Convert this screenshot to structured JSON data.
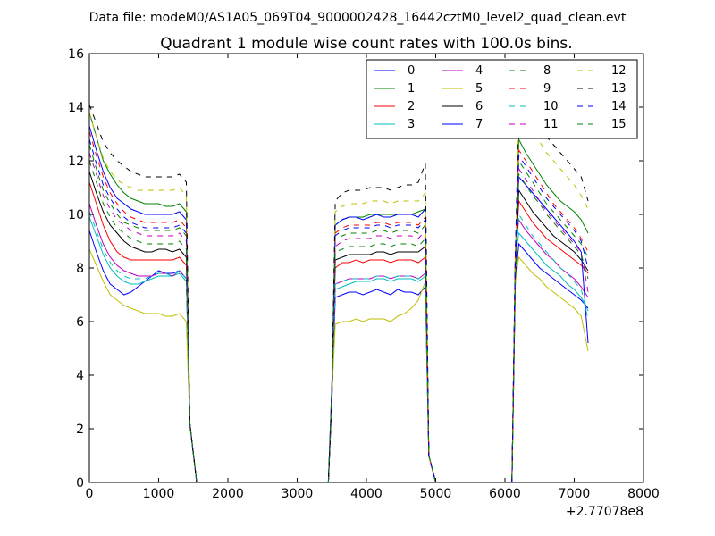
{
  "suptitle": "Data file: modeM0/AS1A05_069T04_9000002428_16442cztM0_level2_quad_clean.evt",
  "chart_data": {
    "type": "line",
    "title": "Quadrant 1 module wise count rates with 100.0s bins.",
    "xlabel": "",
    "ylabel": "",
    "xlim": [
      0,
      8000
    ],
    "ylim": [
      0,
      16
    ],
    "x_offset_label": "+2.77078e8",
    "xticks": [
      0,
      1000,
      2000,
      3000,
      4000,
      5000,
      6000,
      7000,
      8000
    ],
    "yticks": [
      0,
      2,
      4,
      6,
      8,
      10,
      12,
      14,
      16
    ],
    "grid": false,
    "legend": {
      "placement": "top-right",
      "columns": 4
    },
    "segments": [
      {
        "x_start": 0,
        "x_end": 1300,
        "plateau_end": 1400,
        "ramp_end": 1550
      },
      {
        "x_start": 3550,
        "x_end": 4850,
        "ramp_start": 3450,
        "drop_end": 5000
      },
      {
        "x_start": 6200,
        "x_end": 7200,
        "ramp_start": 6100
      }
    ],
    "series": [
      {
        "name": "0",
        "style": "solid",
        "color": "#0000ff",
        "seg1": [
          9.4,
          8.6,
          7.9,
          7.4,
          7.2,
          7.0,
          7.1,
          7.3,
          7.5,
          7.7,
          7.9,
          7.8,
          7.8,
          7.9
        ],
        "seg2": [
          6.9,
          7.0,
          7.1,
          7.1,
          7.0,
          7.1,
          7.2,
          7.1,
          7.0,
          7.2,
          7.1,
          7.1,
          7.0,
          7.3
        ],
        "seg3": [
          8.9,
          8.6,
          8.3,
          8.0,
          7.8,
          7.6,
          7.4,
          7.2,
          7.0,
          6.8,
          6.5
        ]
      },
      {
        "name": "1",
        "style": "solid",
        "color": "#008000",
        "seg1": [
          13.8,
          12.9,
          12.0,
          11.5,
          11.1,
          10.8,
          10.6,
          10.5,
          10.4,
          10.4,
          10.4,
          10.3,
          10.3,
          10.4
        ],
        "seg2": [
          9.6,
          9.8,
          9.9,
          9.9,
          9.9,
          10.0,
          10.0,
          10.0,
          10.0,
          10.0,
          10.0,
          10.0,
          10.1,
          10.2
        ],
        "seg3": [
          12.8,
          12.3,
          11.9,
          11.5,
          11.1,
          10.8,
          10.5,
          10.3,
          10.1,
          9.8,
          9.3
        ]
      },
      {
        "name": "2",
        "style": "solid",
        "color": "#ff0000",
        "seg1": [
          11.2,
          10.4,
          9.6,
          9.0,
          8.6,
          8.4,
          8.3,
          8.3,
          8.3,
          8.3,
          8.3,
          8.3,
          8.3,
          8.4
        ],
        "seg2": [
          8.0,
          8.2,
          8.2,
          8.3,
          8.2,
          8.3,
          8.3,
          8.3,
          8.2,
          8.3,
          8.3,
          8.3,
          8.2,
          8.4
        ],
        "seg3": [
          10.5,
          10.1,
          9.7,
          9.4,
          9.1,
          8.9,
          8.7,
          8.5,
          8.3,
          8.1,
          7.8
        ]
      },
      {
        "name": "3",
        "style": "solid",
        "color": "#00bfbf",
        "seg1": [
          9.9,
          9.2,
          8.5,
          8.0,
          7.7,
          7.5,
          7.4,
          7.4,
          7.5,
          7.6,
          7.7,
          7.7,
          7.7,
          7.8
        ],
        "seg2": [
          7.2,
          7.3,
          7.4,
          7.5,
          7.5,
          7.5,
          7.6,
          7.6,
          7.5,
          7.6,
          7.6,
          7.6,
          7.5,
          7.7
        ],
        "seg3": [
          9.3,
          9.0,
          8.7,
          8.4,
          8.1,
          7.9,
          7.7,
          7.4,
          7.2,
          6.9,
          6.4
        ]
      },
      {
        "name": "4",
        "style": "solid",
        "color": "#bf00bf",
        "seg1": [
          10.4,
          9.6,
          8.9,
          8.4,
          8.1,
          7.9,
          7.8,
          7.7,
          7.7,
          7.7,
          7.8,
          7.8,
          7.7,
          7.9
        ],
        "seg2": [
          7.4,
          7.5,
          7.6,
          7.6,
          7.6,
          7.6,
          7.7,
          7.7,
          7.6,
          7.7,
          7.7,
          7.7,
          7.6,
          7.8
        ],
        "seg3": [
          9.8,
          9.4,
          9.1,
          8.8,
          8.5,
          8.3,
          8.0,
          7.8,
          7.6,
          7.3,
          6.9
        ]
      },
      {
        "name": "5",
        "style": "solid",
        "color": "#bfbf00",
        "seg1": [
          8.7,
          8.1,
          7.5,
          7.0,
          6.8,
          6.6,
          6.5,
          6.4,
          6.3,
          6.3,
          6.3,
          6.2,
          6.2,
          6.3
        ],
        "seg2": [
          5.9,
          6.0,
          6.0,
          6.1,
          6.0,
          6.1,
          6.1,
          6.1,
          6.0,
          6.2,
          6.3,
          6.5,
          6.8,
          7.5
        ],
        "seg3": [
          8.4,
          8.1,
          7.8,
          7.6,
          7.3,
          7.1,
          6.9,
          6.7,
          6.5,
          6.2,
          4.9
        ]
      },
      {
        "name": "6",
        "style": "solid",
        "color": "#000000",
        "seg1": [
          11.6,
          10.8,
          10.1,
          9.6,
          9.3,
          9.0,
          8.8,
          8.7,
          8.6,
          8.6,
          8.7,
          8.7,
          8.6,
          8.7
        ],
        "seg2": [
          8.3,
          8.4,
          8.5,
          8.5,
          8.5,
          8.5,
          8.6,
          8.6,
          8.5,
          8.6,
          8.6,
          8.6,
          8.6,
          8.8
        ],
        "seg3": [
          10.9,
          10.5,
          10.1,
          9.8,
          9.5,
          9.2,
          9.0,
          8.8,
          8.6,
          8.3,
          7.9
        ]
      },
      {
        "name": "7",
        "style": "solid",
        "color": "#0000ff",
        "seg1": [
          13.3,
          12.4,
          11.6,
          11.0,
          10.6,
          10.4,
          10.2,
          10.1,
          10.0,
          10.0,
          10.0,
          10.0,
          10.0,
          10.1
        ],
        "seg2": [
          9.6,
          9.8,
          9.9,
          9.9,
          9.8,
          9.9,
          10.0,
          9.9,
          9.9,
          10.0,
          10.0,
          10.0,
          9.9,
          10.2
        ],
        "seg3": [
          11.4,
          11.1,
          10.8,
          10.5,
          10.2,
          9.9,
          9.6,
          9.3,
          9.0,
          8.6,
          5.2
        ]
      },
      {
        "name": "8",
        "style": "dashed",
        "color": "#008000",
        "seg1": [
          12.6,
          11.7,
          10.9,
          10.4,
          10.0,
          9.7,
          9.6,
          9.5,
          9.4,
          9.4,
          9.4,
          9.4,
          9.4,
          9.5
        ],
        "seg2": [
          9.1,
          9.2,
          9.3,
          9.3,
          9.3,
          9.3,
          9.4,
          9.4,
          9.3,
          9.4,
          9.4,
          9.4,
          9.3,
          9.6
        ],
        "seg3": [
          12.0,
          11.6,
          11.2,
          10.8,
          10.4,
          10.1,
          9.8,
          9.5,
          9.2,
          8.9,
          8.4
        ]
      },
      {
        "name": "9",
        "style": "dashed",
        "color": "#ff0000",
        "seg1": [
          13.1,
          12.2,
          11.4,
          10.8,
          10.4,
          10.1,
          9.9,
          9.8,
          9.7,
          9.7,
          9.7,
          9.7,
          9.7,
          9.8
        ],
        "seg2": [
          9.3,
          9.5,
          9.6,
          9.6,
          9.6,
          9.6,
          9.7,
          9.7,
          9.6,
          9.7,
          9.7,
          9.7,
          9.6,
          9.9
        ],
        "seg3": [
          12.4,
          12.0,
          11.6,
          11.2,
          10.8,
          10.4,
          10.1,
          9.8,
          9.5,
          9.1,
          8.6
        ]
      },
      {
        "name": "10",
        "style": "dashed",
        "color": "#00bfbf",
        "seg1": [
          10.1,
          9.4,
          8.7,
          8.2,
          7.9,
          7.7,
          7.6,
          7.6,
          7.6,
          7.7,
          7.8,
          7.8,
          7.7,
          7.9
        ],
        "seg2": [
          7.4,
          7.5,
          7.6,
          7.6,
          7.6,
          7.6,
          7.7,
          7.7,
          7.6,
          7.7,
          7.7,
          7.7,
          7.6,
          7.8
        ],
        "seg3": [
          10.0,
          9.6,
          9.2,
          8.9,
          8.6,
          8.3,
          8.0,
          7.8,
          7.5,
          7.2,
          6.1
        ]
      },
      {
        "name": "11",
        "style": "dashed",
        "color": "#bf00bf",
        "seg1": [
          12.3,
          11.5,
          10.7,
          10.2,
          9.8,
          9.6,
          9.4,
          9.3,
          9.2,
          9.2,
          9.2,
          9.2,
          9.2,
          9.3
        ],
        "seg2": [
          8.8,
          9.0,
          9.1,
          9.1,
          9.1,
          9.1,
          9.2,
          9.2,
          9.1,
          9.2,
          9.2,
          9.2,
          9.1,
          9.4
        ],
        "seg3": [
          11.7,
          11.3,
          10.9,
          10.5,
          10.1,
          9.8,
          9.5,
          9.2,
          8.9,
          8.6,
          7.1
        ]
      },
      {
        "name": "12",
        "style": "dashed",
        "color": "#bfbf00",
        "seg1": [
          13.8,
          12.9,
          12.1,
          11.6,
          11.3,
          11.1,
          11.0,
          10.9,
          10.9,
          10.9,
          10.9,
          10.9,
          10.9,
          11.0
        ],
        "seg2": [
          10.1,
          10.3,
          10.4,
          10.4,
          10.4,
          10.5,
          10.5,
          10.5,
          10.4,
          10.5,
          10.5,
          10.5,
          10.5,
          10.8
        ],
        "seg3": [
          13.9,
          13.5,
          13.1,
          12.7,
          12.3,
          12.0,
          11.7,
          11.4,
          11.1,
          10.7,
          10.2
        ]
      },
      {
        "name": "13",
        "style": "dashed",
        "color": "#000000",
        "seg1": [
          14.1,
          13.4,
          12.7,
          12.3,
          12.0,
          11.8,
          11.6,
          11.5,
          11.4,
          11.4,
          11.4,
          11.4,
          11.4,
          11.5
        ],
        "seg2": [
          10.5,
          10.8,
          10.9,
          10.9,
          10.9,
          11.0,
          11.0,
          11.0,
          10.9,
          11.0,
          11.1,
          11.1,
          11.2,
          11.9
        ],
        "seg3": [
          14.3,
          14.1,
          13.7,
          13.3,
          12.9,
          12.6,
          12.3,
          12.0,
          11.7,
          11.4,
          10.5
        ]
      },
      {
        "name": "14",
        "style": "dashed",
        "color": "#0000ff",
        "seg1": [
          12.8,
          11.9,
          11.1,
          10.6,
          10.2,
          9.9,
          9.7,
          9.6,
          9.5,
          9.5,
          9.5,
          9.5,
          9.5,
          9.6
        ],
        "seg2": [
          9.2,
          9.4,
          9.5,
          9.5,
          9.5,
          9.5,
          9.6,
          9.6,
          9.5,
          9.6,
          9.6,
          9.6,
          9.5,
          9.8
        ],
        "seg3": [
          12.2,
          11.8,
          11.4,
          11.0,
          10.6,
          10.3,
          10.0,
          9.7,
          9.4,
          9.0,
          8.0
        ]
      },
      {
        "name": "15",
        "style": "dashed",
        "color": "#008000",
        "seg1": [
          12.0,
          11.2,
          10.4,
          9.9,
          9.5,
          9.3,
          9.1,
          9.0,
          8.9,
          8.9,
          8.9,
          8.9,
          8.9,
          9.0
        ],
        "seg2": [
          8.6,
          8.7,
          8.8,
          8.8,
          8.8,
          8.8,
          8.9,
          8.9,
          8.8,
          8.9,
          8.9,
          8.9,
          8.8,
          9.1
        ],
        "seg3": [
          11.5,
          11.1,
          10.7,
          10.4,
          10.0,
          9.7,
          9.4,
          9.1,
          8.8,
          8.5,
          7.6
        ]
      }
    ]
  }
}
